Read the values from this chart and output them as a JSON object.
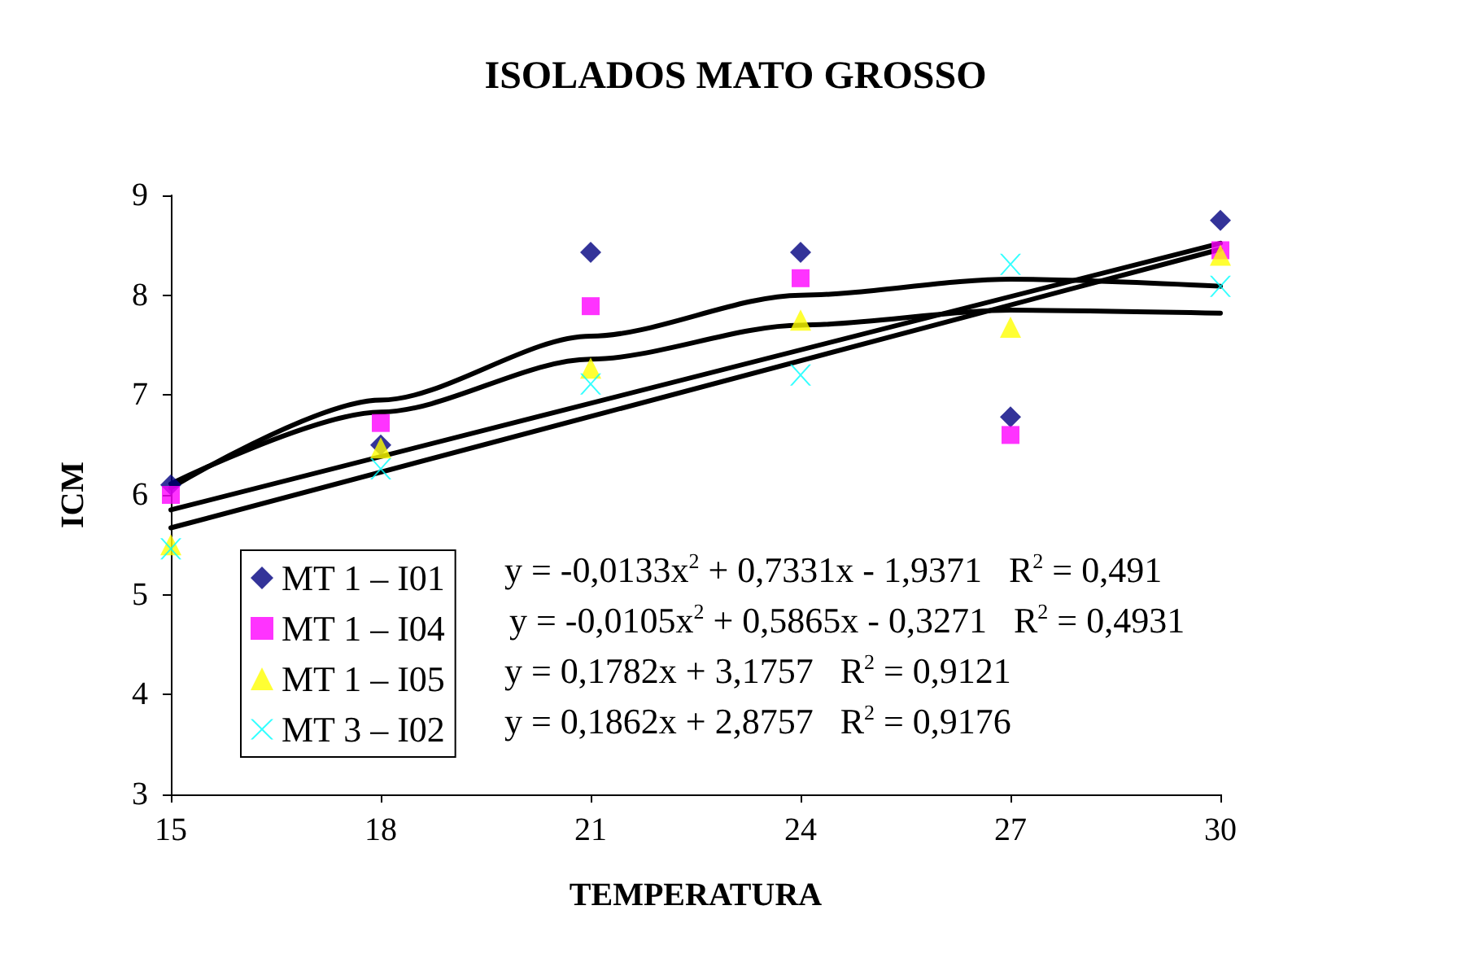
{
  "chart_data": {
    "type": "scatter",
    "title": "ISOLADOS MATO GROSSO",
    "xlabel": "TEMPERATURA",
    "ylabel": "ICM",
    "xlim": [
      15,
      30
    ],
    "xticks": [
      15,
      18,
      21,
      24,
      27,
      30
    ],
    "ylim": [
      3,
      9
    ],
    "yticks": [
      3,
      4,
      5,
      6,
      7,
      8,
      9
    ],
    "grid": false,
    "legend": "bottom left",
    "series": [
      {
        "name": "MT 1 – I01",
        "color": "#000080",
        "marker": "diamond",
        "x": [
          15,
          18,
          21,
          24,
          27,
          30
        ],
        "values": [
          6.1,
          6.5,
          8.43,
          8.43,
          6.78,
          8.75
        ]
      },
      {
        "name": "MT 1 – I04",
        "color": "#ff00ff",
        "marker": "square",
        "x": [
          15,
          18,
          21,
          24,
          27,
          30
        ],
        "values": [
          6.0,
          6.72,
          7.89,
          8.17,
          6.6,
          8.45
        ]
      },
      {
        "name": "MT 1 – I05",
        "color": "#ffff00",
        "marker": "triangle",
        "x": [
          15,
          18,
          21,
          24,
          27,
          30
        ],
        "values": [
          5.5,
          6.47,
          7.27,
          7.75,
          7.68,
          8.4
        ]
      },
      {
        "name": "MT 3 – I02",
        "color": "#00ffff",
        "marker": "cross",
        "x": [
          15,
          18,
          21,
          24,
          27,
          30
        ],
        "values": [
          5.46,
          6.26,
          7.11,
          7.2,
          8.31,
          8.09
        ]
      },
      {
        "type": "line",
        "color": "#000000",
        "marker": "none",
        "line_style": "solid",
        "x": [
          15,
          18,
          21,
          24,
          27,
          30
        ],
        "values": [
          6.07,
          6.95,
          7.59,
          8.0,
          8.16,
          8.09
        ]
      },
      {
        "type": "line",
        "color": "#000000",
        "marker": "none",
        "line_style": "solid",
        "x": [
          15,
          18,
          21,
          24,
          27,
          30
        ],
        "values": [
          6.11,
          6.83,
          7.36,
          7.7,
          7.85,
          7.82
        ]
      },
      {
        "type": "line",
        "color": "#000000",
        "marker": "none",
        "line_style": "solid",
        "x": [
          15,
          30
        ],
        "values": [
          5.85,
          8.52
        ]
      },
      {
        "type": "line",
        "color": "#000000",
        "marker": "none",
        "line_style": "solid",
        "x": [
          15,
          30
        ],
        "values": [
          5.67,
          8.46
        ]
      }
    ],
    "annotations": [
      "y = -0,0133x$^{2}$ + 0,7331x - 1,9371   R$^{2}$ = 0,491",
      "y = -0,0105x$^{2}$ + 0,5865x - 0,3271   R$^{2}$ = 0,4931",
      "y = 0,1782x + 3,1757   R$^{2}$ = 0,9121",
      "y = 0,1862x + 2,8757   R$^{2}$ = 0,9176"
    ]
  }
}
